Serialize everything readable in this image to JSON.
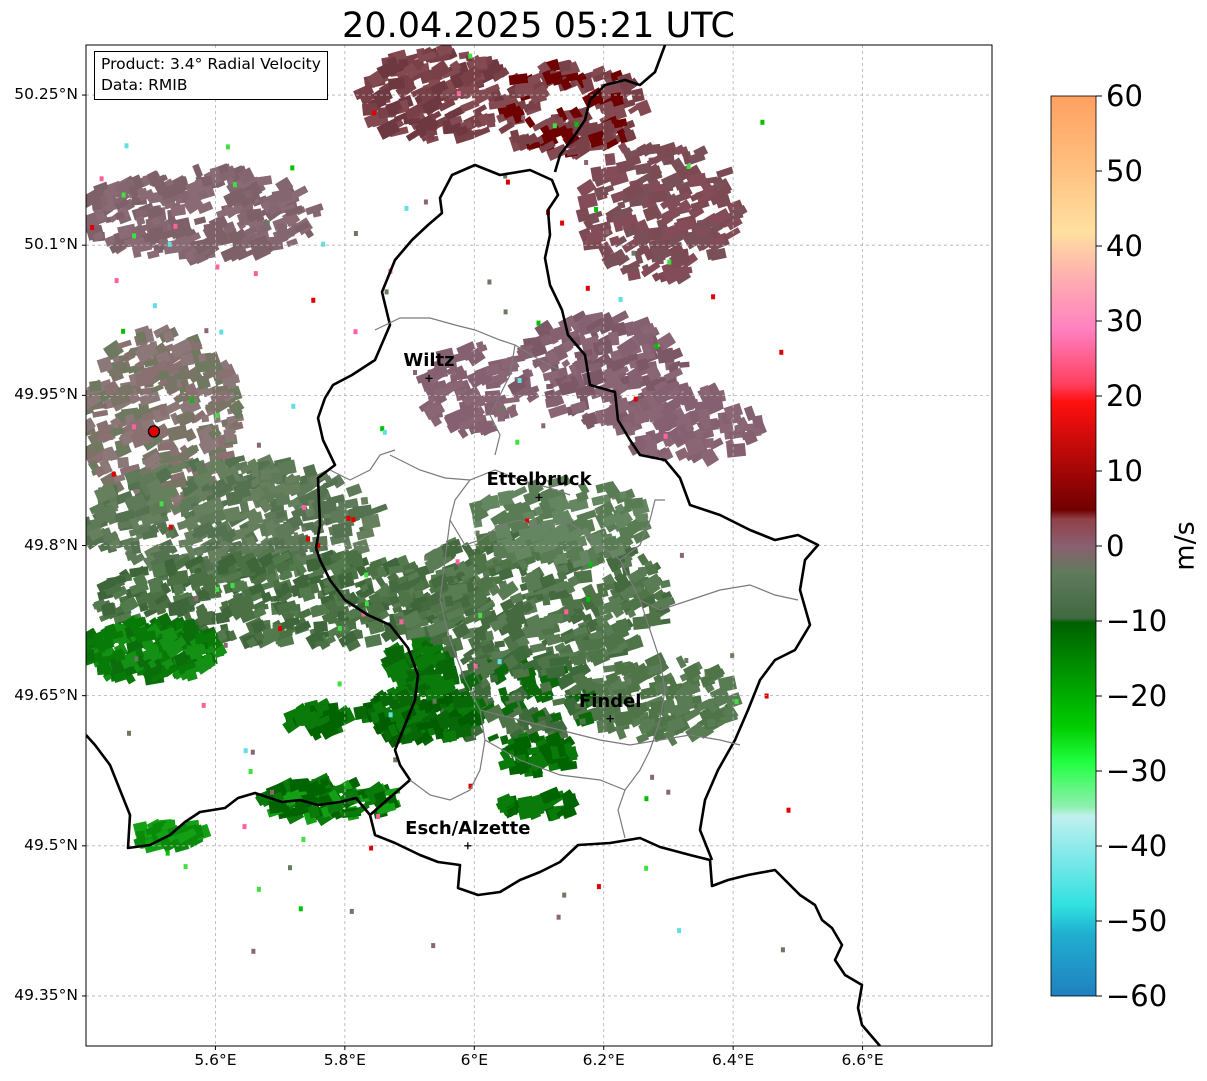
{
  "title": "20.04.2025 05:21 UTC",
  "info": {
    "product": "Product: 3.4° Radial Velocity",
    "data": "Data: RMIB"
  },
  "axes": {
    "lat_ticks": [
      "50.25°N",
      "50.1°N",
      "49.95°N",
      "49.8°N",
      "49.65°N",
      "49.5°N",
      "49.35°N"
    ],
    "lon_ticks": [
      "5.6°E",
      "5.8°E",
      "6°E",
      "6.2°E",
      "6.4°E",
      "6.6°E"
    ],
    "extent": {
      "lon_min": 5.4,
      "lon_max": 6.8,
      "lat_min": 49.3,
      "lat_max": 50.3
    }
  },
  "cities": [
    {
      "name": "Wiltz",
      "lon": 5.93,
      "lat": 49.967
    },
    {
      "name": "Ettelbruck",
      "lon": 6.1,
      "lat": 49.848
    },
    {
      "name": "Findel",
      "lon": 6.21,
      "lat": 49.627
    },
    {
      "name": "Esch/Alzette",
      "lon": 5.99,
      "lat": 49.5
    }
  ],
  "radar_site": {
    "lon": 5.505,
    "lat": 49.914
  },
  "colorbar": {
    "unit": "m/s",
    "min": -60,
    "max": 60,
    "ticks": [
      "60",
      "50",
      "40",
      "30",
      "20",
      "10",
      "0",
      "−10",
      "−20",
      "−30",
      "−40",
      "−50",
      "−60"
    ]
  }
}
